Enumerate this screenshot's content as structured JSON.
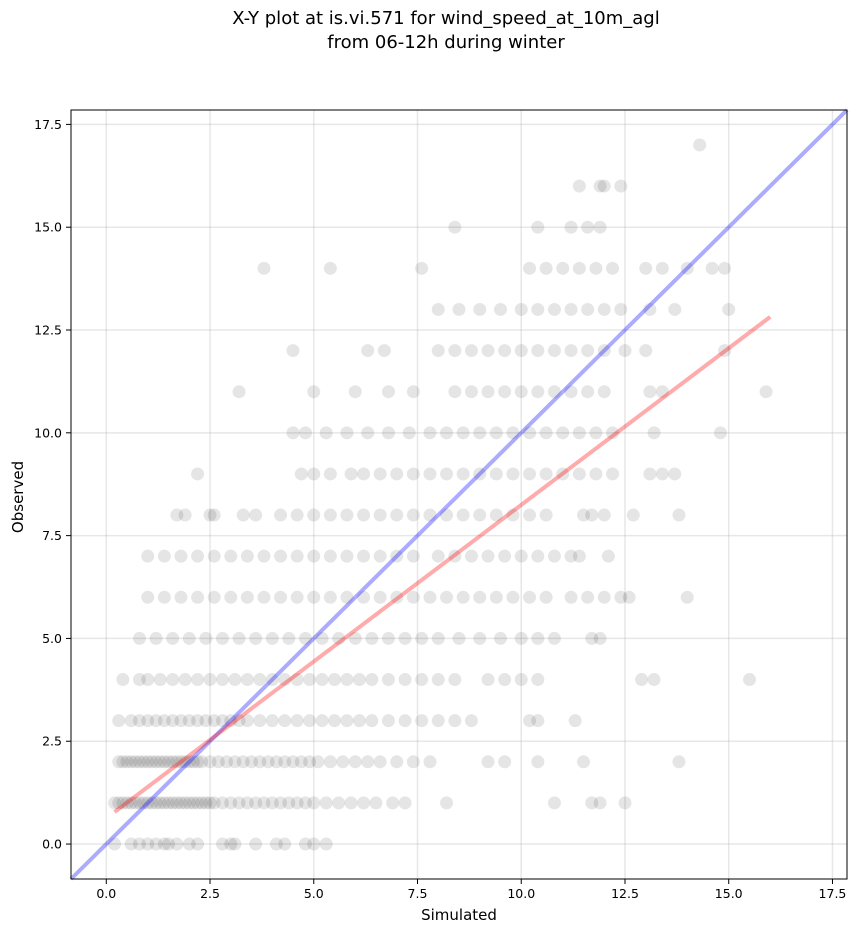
{
  "chart_data": {
    "type": "scatter",
    "title_lines": [
      "X-Y plot at is.vi.571 for wind_speed_at_10m_agl",
      "from 06-12h during winter"
    ],
    "xlabel": "Simulated",
    "ylabel": "Observed",
    "xlim": [
      -0.85,
      17.85
    ],
    "ylim": [
      -0.85,
      17.85
    ],
    "x_ticks": [
      0.0,
      2.5,
      5.0,
      7.5,
      10.0,
      12.5,
      15.0,
      17.5
    ],
    "x_tick_labels": [
      "0.0",
      "2.5",
      "5.0",
      "7.5",
      "10.0",
      "12.5",
      "15.0",
      "17.5"
    ],
    "y_ticks": [
      0.0,
      2.5,
      5.0,
      7.5,
      10.0,
      12.5,
      15.0,
      17.5
    ],
    "y_tick_labels": [
      "0.0",
      "2.5",
      "5.0",
      "7.5",
      "10.0",
      "12.5",
      "15.0",
      "17.5"
    ],
    "grid": true,
    "point_color": "#000000",
    "point_alpha": 0.1,
    "lines": [
      {
        "role": "one-to-one",
        "color": "#0000ff",
        "alpha": 0.33,
        "x": [
          -0.85,
          17.85
        ],
        "y": [
          -0.85,
          17.85
        ]
      },
      {
        "role": "linear-fit",
        "color": "#ff0000",
        "alpha": 0.33,
        "x": [
          0.2,
          16.0
        ],
        "y": [
          0.78,
          12.82
        ]
      }
    ],
    "points": [
      [
        0.2,
        0
      ],
      [
        0.6,
        0
      ],
      [
        0.8,
        0
      ],
      [
        1.0,
        0
      ],
      [
        1.2,
        0
      ],
      [
        1.4,
        0
      ],
      [
        1.5,
        0
      ],
      [
        1.7,
        0
      ],
      [
        2.0,
        0
      ],
      [
        2.2,
        0
      ],
      [
        2.8,
        0
      ],
      [
        3.0,
        0
      ],
      [
        3.1,
        0
      ],
      [
        3.6,
        0
      ],
      [
        4.1,
        0
      ],
      [
        4.3,
        0
      ],
      [
        4.8,
        0
      ],
      [
        5.0,
        0
      ],
      [
        5.3,
        0
      ],
      [
        0.2,
        1
      ],
      [
        0.3,
        1
      ],
      [
        0.4,
        1
      ],
      [
        0.5,
        1
      ],
      [
        0.6,
        1
      ],
      [
        0.7,
        1
      ],
      [
        0.8,
        1
      ],
      [
        0.9,
        1
      ],
      [
        1.0,
        1
      ],
      [
        1.1,
        1
      ],
      [
        1.2,
        1
      ],
      [
        1.3,
        1
      ],
      [
        1.4,
        1
      ],
      [
        1.5,
        1
      ],
      [
        1.6,
        1
      ],
      [
        1.7,
        1
      ],
      [
        1.8,
        1
      ],
      [
        1.9,
        1
      ],
      [
        2.0,
        1
      ],
      [
        2.1,
        1
      ],
      [
        2.2,
        1
      ],
      [
        2.3,
        1
      ],
      [
        2.4,
        1
      ],
      [
        2.5,
        1
      ],
      [
        2.6,
        1
      ],
      [
        2.8,
        1
      ],
      [
        3.0,
        1
      ],
      [
        3.2,
        1
      ],
      [
        3.4,
        1
      ],
      [
        3.6,
        1
      ],
      [
        3.8,
        1
      ],
      [
        4.0,
        1
      ],
      [
        4.2,
        1
      ],
      [
        4.4,
        1
      ],
      [
        4.6,
        1
      ],
      [
        4.8,
        1
      ],
      [
        5.0,
        1
      ],
      [
        5.3,
        1
      ],
      [
        5.6,
        1
      ],
      [
        5.9,
        1
      ],
      [
        6.2,
        1
      ],
      [
        6.5,
        1
      ],
      [
        6.9,
        1
      ],
      [
        7.2,
        1
      ],
      [
        8.2,
        1
      ],
      [
        10.8,
        1
      ],
      [
        11.7,
        1
      ],
      [
        11.9,
        1
      ],
      [
        12.5,
        1
      ],
      [
        0.3,
        2
      ],
      [
        0.4,
        2
      ],
      [
        0.5,
        2
      ],
      [
        0.6,
        2
      ],
      [
        0.7,
        2
      ],
      [
        0.8,
        2
      ],
      [
        0.9,
        2
      ],
      [
        1.0,
        2
      ],
      [
        1.1,
        2
      ],
      [
        1.2,
        2
      ],
      [
        1.3,
        2
      ],
      [
        1.4,
        2
      ],
      [
        1.5,
        2
      ],
      [
        1.6,
        2
      ],
      [
        1.7,
        2
      ],
      [
        1.8,
        2
      ],
      [
        1.9,
        2
      ],
      [
        2.0,
        2
      ],
      [
        2.1,
        2
      ],
      [
        2.2,
        2
      ],
      [
        2.3,
        2
      ],
      [
        2.5,
        2
      ],
      [
        2.7,
        2
      ],
      [
        2.9,
        2
      ],
      [
        3.1,
        2
      ],
      [
        3.3,
        2
      ],
      [
        3.5,
        2
      ],
      [
        3.7,
        2
      ],
      [
        3.9,
        2
      ],
      [
        4.1,
        2
      ],
      [
        4.3,
        2
      ],
      [
        4.5,
        2
      ],
      [
        4.7,
        2
      ],
      [
        4.9,
        2
      ],
      [
        5.1,
        2
      ],
      [
        5.4,
        2
      ],
      [
        5.7,
        2
      ],
      [
        6.0,
        2
      ],
      [
        6.3,
        2
      ],
      [
        6.6,
        2
      ],
      [
        7.0,
        2
      ],
      [
        7.4,
        2
      ],
      [
        7.8,
        2
      ],
      [
        9.2,
        2
      ],
      [
        9.6,
        2
      ],
      [
        10.4,
        2
      ],
      [
        11.5,
        2
      ],
      [
        13.8,
        2
      ],
      [
        0.3,
        3
      ],
      [
        0.6,
        3
      ],
      [
        0.8,
        3
      ],
      [
        1.0,
        3
      ],
      [
        1.2,
        3
      ],
      [
        1.4,
        3
      ],
      [
        1.6,
        3
      ],
      [
        1.8,
        3
      ],
      [
        2.0,
        3
      ],
      [
        2.2,
        3
      ],
      [
        2.4,
        3
      ],
      [
        2.6,
        3
      ],
      [
        2.8,
        3
      ],
      [
        3.0,
        3
      ],
      [
        3.2,
        3
      ],
      [
        3.4,
        3
      ],
      [
        3.7,
        3
      ],
      [
        4.0,
        3
      ],
      [
        4.3,
        3
      ],
      [
        4.6,
        3
      ],
      [
        4.9,
        3
      ],
      [
        5.2,
        3
      ],
      [
        5.5,
        3
      ],
      [
        5.8,
        3
      ],
      [
        6.1,
        3
      ],
      [
        6.4,
        3
      ],
      [
        6.8,
        3
      ],
      [
        7.2,
        3
      ],
      [
        7.6,
        3
      ],
      [
        8.0,
        3
      ],
      [
        8.4,
        3
      ],
      [
        8.8,
        3
      ],
      [
        10.2,
        3
      ],
      [
        10.4,
        3
      ],
      [
        11.3,
        3
      ],
      [
        0.4,
        4
      ],
      [
        0.8,
        4
      ],
      [
        1.0,
        4
      ],
      [
        1.3,
        4
      ],
      [
        1.6,
        4
      ],
      [
        1.9,
        4
      ],
      [
        2.2,
        4
      ],
      [
        2.5,
        4
      ],
      [
        2.8,
        4
      ],
      [
        3.1,
        4
      ],
      [
        3.4,
        4
      ],
      [
        3.7,
        4
      ],
      [
        4.0,
        4
      ],
      [
        4.3,
        4
      ],
      [
        4.6,
        4
      ],
      [
        4.9,
        4
      ],
      [
        5.2,
        4
      ],
      [
        5.5,
        4
      ],
      [
        5.8,
        4
      ],
      [
        6.1,
        4
      ],
      [
        6.4,
        4
      ],
      [
        6.8,
        4
      ],
      [
        7.2,
        4
      ],
      [
        7.6,
        4
      ],
      [
        8.0,
        4
      ],
      [
        8.4,
        4
      ],
      [
        9.2,
        4
      ],
      [
        9.6,
        4
      ],
      [
        10.0,
        4
      ],
      [
        10.4,
        4
      ],
      [
        12.9,
        4
      ],
      [
        13.2,
        4
      ],
      [
        15.5,
        4
      ],
      [
        0.8,
        5
      ],
      [
        1.2,
        5
      ],
      [
        1.6,
        5
      ],
      [
        2.0,
        5
      ],
      [
        2.4,
        5
      ],
      [
        2.8,
        5
      ],
      [
        3.2,
        5
      ],
      [
        3.6,
        5
      ],
      [
        4.0,
        5
      ],
      [
        4.4,
        5
      ],
      [
        4.8,
        5
      ],
      [
        5.2,
        5
      ],
      [
        5.6,
        5
      ],
      [
        6.0,
        5
      ],
      [
        6.4,
        5
      ],
      [
        6.8,
        5
      ],
      [
        7.2,
        5
      ],
      [
        7.6,
        5
      ],
      [
        8.0,
        5
      ],
      [
        8.5,
        5
      ],
      [
        9.0,
        5
      ],
      [
        9.5,
        5
      ],
      [
        10.0,
        5
      ],
      [
        10.4,
        5
      ],
      [
        10.8,
        5
      ],
      [
        11.7,
        5
      ],
      [
        11.9,
        5
      ],
      [
        1.0,
        6
      ],
      [
        1.4,
        6
      ],
      [
        1.8,
        6
      ],
      [
        2.2,
        6
      ],
      [
        2.6,
        6
      ],
      [
        3.0,
        6
      ],
      [
        3.4,
        6
      ],
      [
        3.8,
        6
      ],
      [
        4.2,
        6
      ],
      [
        4.6,
        6
      ],
      [
        5.0,
        6
      ],
      [
        5.4,
        6
      ],
      [
        5.8,
        6
      ],
      [
        6.2,
        6
      ],
      [
        6.6,
        6
      ],
      [
        7.0,
        6
      ],
      [
        7.4,
        6
      ],
      [
        7.8,
        6
      ],
      [
        8.2,
        6
      ],
      [
        8.6,
        6
      ],
      [
        9.0,
        6
      ],
      [
        9.4,
        6
      ],
      [
        9.8,
        6
      ],
      [
        10.2,
        6
      ],
      [
        10.6,
        6
      ],
      [
        11.2,
        6
      ],
      [
        11.6,
        6
      ],
      [
        12.0,
        6
      ],
      [
        12.4,
        6
      ],
      [
        12.6,
        6
      ],
      [
        14.0,
        6
      ],
      [
        1.0,
        7
      ],
      [
        1.4,
        7
      ],
      [
        1.8,
        7
      ],
      [
        2.2,
        7
      ],
      [
        2.6,
        7
      ],
      [
        3.0,
        7
      ],
      [
        3.4,
        7
      ],
      [
        3.8,
        7
      ],
      [
        4.2,
        7
      ],
      [
        4.6,
        7
      ],
      [
        5.0,
        7
      ],
      [
        5.4,
        7
      ],
      [
        5.8,
        7
      ],
      [
        6.2,
        7
      ],
      [
        6.6,
        7
      ],
      [
        7.0,
        7
      ],
      [
        7.4,
        7
      ],
      [
        8.0,
        7
      ],
      [
        8.4,
        7
      ],
      [
        8.8,
        7
      ],
      [
        9.2,
        7
      ],
      [
        9.6,
        7
      ],
      [
        10.0,
        7
      ],
      [
        10.4,
        7
      ],
      [
        10.8,
        7
      ],
      [
        11.2,
        7
      ],
      [
        11.4,
        7
      ],
      [
        12.1,
        7
      ],
      [
        1.7,
        8
      ],
      [
        1.9,
        8
      ],
      [
        2.5,
        8
      ],
      [
        2.6,
        8
      ],
      [
        3.3,
        8
      ],
      [
        3.6,
        8
      ],
      [
        4.2,
        8
      ],
      [
        4.6,
        8
      ],
      [
        5.0,
        8
      ],
      [
        5.4,
        8
      ],
      [
        5.8,
        8
      ],
      [
        6.2,
        8
      ],
      [
        6.6,
        8
      ],
      [
        7.0,
        8
      ],
      [
        7.4,
        8
      ],
      [
        7.8,
        8
      ],
      [
        8.2,
        8
      ],
      [
        8.6,
        8
      ],
      [
        9.0,
        8
      ],
      [
        9.4,
        8
      ],
      [
        9.8,
        8
      ],
      [
        10.2,
        8
      ],
      [
        10.6,
        8
      ],
      [
        11.5,
        8
      ],
      [
        11.7,
        8
      ],
      [
        12.0,
        8
      ],
      [
        12.7,
        8
      ],
      [
        13.8,
        8
      ],
      [
        2.2,
        9
      ],
      [
        4.7,
        9
      ],
      [
        5.0,
        9
      ],
      [
        5.4,
        9
      ],
      [
        5.9,
        9
      ],
      [
        6.2,
        9
      ],
      [
        6.6,
        9
      ],
      [
        7.0,
        9
      ],
      [
        7.4,
        9
      ],
      [
        7.8,
        9
      ],
      [
        8.2,
        9
      ],
      [
        8.6,
        9
      ],
      [
        9.0,
        9
      ],
      [
        9.4,
        9
      ],
      [
        9.8,
        9
      ],
      [
        10.2,
        9
      ],
      [
        10.6,
        9
      ],
      [
        11.0,
        9
      ],
      [
        11.4,
        9
      ],
      [
        11.8,
        9
      ],
      [
        12.2,
        9
      ],
      [
        13.1,
        9
      ],
      [
        13.4,
        9
      ],
      [
        13.7,
        9
      ],
      [
        4.5,
        10
      ],
      [
        4.8,
        10
      ],
      [
        5.3,
        10
      ],
      [
        5.8,
        10
      ],
      [
        6.3,
        10
      ],
      [
        6.8,
        10
      ],
      [
        7.3,
        10
      ],
      [
        7.8,
        10
      ],
      [
        8.2,
        10
      ],
      [
        8.6,
        10
      ],
      [
        9.0,
        10
      ],
      [
        9.4,
        10
      ],
      [
        9.8,
        10
      ],
      [
        10.2,
        10
      ],
      [
        10.6,
        10
      ],
      [
        11.0,
        10
      ],
      [
        11.4,
        10
      ],
      [
        11.8,
        10
      ],
      [
        12.2,
        10
      ],
      [
        13.2,
        10
      ],
      [
        14.8,
        10
      ],
      [
        3.2,
        11
      ],
      [
        5.0,
        11
      ],
      [
        6.0,
        11
      ],
      [
        6.8,
        11
      ],
      [
        7.4,
        11
      ],
      [
        8.4,
        11
      ],
      [
        8.8,
        11
      ],
      [
        9.2,
        11
      ],
      [
        9.6,
        11
      ],
      [
        10.0,
        11
      ],
      [
        10.4,
        11
      ],
      [
        10.8,
        11
      ],
      [
        11.2,
        11
      ],
      [
        11.6,
        11
      ],
      [
        12.0,
        11
      ],
      [
        13.1,
        11
      ],
      [
        13.4,
        11
      ],
      [
        15.9,
        11
      ],
      [
        4.5,
        12
      ],
      [
        6.3,
        12
      ],
      [
        6.7,
        12
      ],
      [
        8.0,
        12
      ],
      [
        8.4,
        12
      ],
      [
        8.8,
        12
      ],
      [
        9.2,
        12
      ],
      [
        9.6,
        12
      ],
      [
        10.0,
        12
      ],
      [
        10.4,
        12
      ],
      [
        10.8,
        12
      ],
      [
        11.2,
        12
      ],
      [
        11.6,
        12
      ],
      [
        12.0,
        12
      ],
      [
        12.5,
        12
      ],
      [
        13.0,
        12
      ],
      [
        14.9,
        12
      ],
      [
        8.0,
        13
      ],
      [
        8.5,
        13
      ],
      [
        9.0,
        13
      ],
      [
        9.5,
        13
      ],
      [
        10.0,
        13
      ],
      [
        10.4,
        13
      ],
      [
        10.8,
        13
      ],
      [
        11.2,
        13
      ],
      [
        11.6,
        13
      ],
      [
        12.0,
        13
      ],
      [
        12.4,
        13
      ],
      [
        13.1,
        13
      ],
      [
        13.7,
        13
      ],
      [
        15.0,
        13
      ],
      [
        3.8,
        14
      ],
      [
        5.4,
        14
      ],
      [
        7.6,
        14
      ],
      [
        10.2,
        14
      ],
      [
        10.6,
        14
      ],
      [
        11.0,
        14
      ],
      [
        11.4,
        14
      ],
      [
        11.8,
        14
      ],
      [
        12.2,
        14
      ],
      [
        13.0,
        14
      ],
      [
        13.4,
        14
      ],
      [
        14.0,
        14
      ],
      [
        14.6,
        14
      ],
      [
        14.9,
        14
      ],
      [
        8.4,
        15
      ],
      [
        10.4,
        15
      ],
      [
        11.2,
        15
      ],
      [
        11.6,
        15
      ],
      [
        11.9,
        15
      ],
      [
        11.4,
        16
      ],
      [
        11.9,
        16
      ],
      [
        12.0,
        16
      ],
      [
        12.4,
        16
      ],
      [
        14.3,
        17
      ]
    ]
  }
}
